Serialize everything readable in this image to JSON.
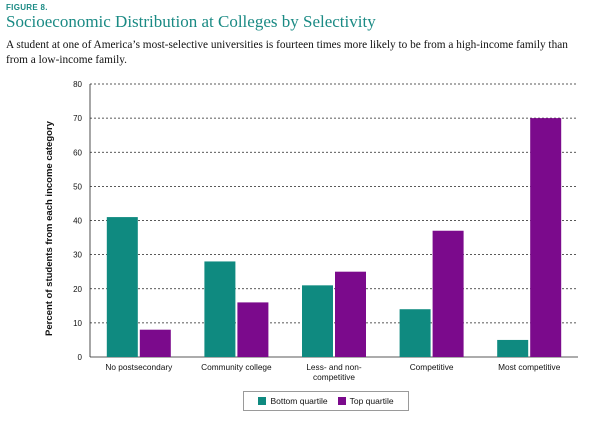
{
  "header": {
    "figure_label": "FIGURE 8.",
    "title": "Socioeconomic Distribution at Colleges by Selectivity",
    "subtitle_line1": "A student at one of America’s most-selective universities is fourteen times more likely to be from a high-income family than",
    "subtitle_line2": "from a low-income family."
  },
  "colors": {
    "bottom": "#0f8a80",
    "top": "#7b0a8c",
    "grid": "#222222"
  },
  "chart_data": {
    "type": "bar",
    "categories": [
      [
        "No postsecondary"
      ],
      [
        "Community college"
      ],
      [
        "Less- and non-",
        "competitive"
      ],
      [
        "Competitive"
      ],
      [
        "Most competitive"
      ]
    ],
    "series": [
      {
        "name": "Bottom quartile",
        "values": [
          41,
          28,
          21,
          14,
          5
        ]
      },
      {
        "name": "Top quartile",
        "values": [
          8,
          16,
          25,
          37,
          70
        ]
      }
    ],
    "ylabel": "Percent of students from each income category",
    "ylim": [
      0,
      80
    ],
    "yticks": [
      0,
      10,
      20,
      30,
      40,
      50,
      60,
      70,
      80
    ],
    "grid": true,
    "legend_position": "bottom"
  }
}
